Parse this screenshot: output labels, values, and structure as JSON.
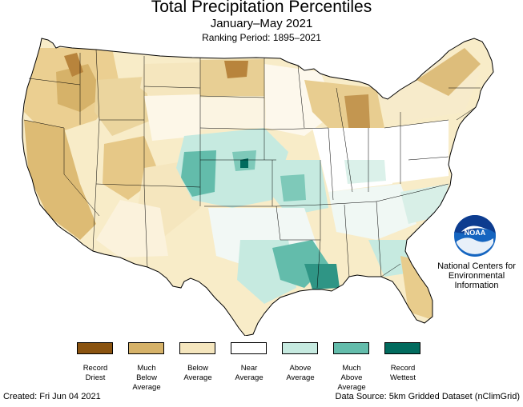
{
  "title": "Total Precipitation Percentiles",
  "subtitle": "January–May 2021",
  "ranking_period": "Ranking Period: 1895–2021",
  "legend": [
    {
      "lines": [
        "Record",
        "Driest"
      ],
      "color": "#8a5310"
    },
    {
      "lines": [
        "Much",
        "Below",
        "Average"
      ],
      "color": "#d6b269"
    },
    {
      "lines": [
        "Below",
        "Average"
      ],
      "color": "#f5e6be"
    },
    {
      "lines": [
        "Near",
        "Average"
      ],
      "color": "#ffffff"
    },
    {
      "lines": [
        "Above",
        "Average"
      ],
      "color": "#c6eae0"
    },
    {
      "lines": [
        "Much",
        "Above",
        "Average"
      ],
      "color": "#63bcab"
    },
    {
      "lines": [
        "Record",
        "Wettest"
      ],
      "color": "#016b5e"
    }
  ],
  "org_name": "National Centers for Environmental Information",
  "logo_text": "NOAA",
  "created": "Created: Fri Jun 04 2021",
  "source": "Data Source: 5km Gridded Dataset (nClimGrid)"
}
